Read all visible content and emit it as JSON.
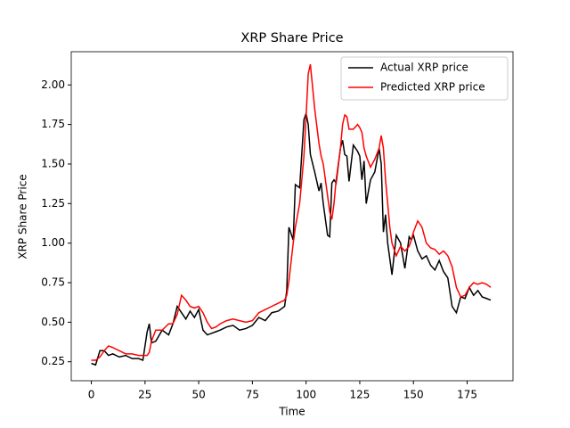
{
  "chart_data": {
    "type": "line",
    "title": "XRP Share Price",
    "x_label": "Time",
    "y_label": "XRP Share Price",
    "x": [
      0,
      2,
      4,
      6,
      8,
      10,
      13,
      16,
      19,
      22,
      24,
      26,
      27,
      28,
      30,
      33,
      36,
      38,
      40,
      42,
      44,
      46,
      48,
      50,
      52,
      54,
      56,
      58,
      60,
      63,
      66,
      69,
      72,
      75,
      78,
      81,
      84,
      87,
      90,
      91,
      92,
      94,
      95,
      97,
      99,
      100,
      101,
      102,
      104,
      106,
      107,
      108,
      110,
      111,
      112,
      113,
      114,
      116,
      117,
      118,
      119,
      120,
      122,
      124,
      125,
      126,
      127,
      128,
      130,
      132,
      134,
      135,
      136,
      137,
      138,
      139,
      140,
      142,
      144,
      146,
      148,
      149,
      150,
      152,
      154,
      156,
      158,
      160,
      162,
      164,
      166,
      168,
      170,
      172,
      174,
      176,
      178,
      180,
      182,
      184,
      186
    ],
    "series": [
      {
        "name": "Actual XRP price",
        "color": "#000000",
        "values": [
          0.24,
          0.23,
          0.32,
          0.32,
          0.29,
          0.3,
          0.28,
          0.29,
          0.27,
          0.27,
          0.26,
          0.44,
          0.49,
          0.37,
          0.38,
          0.45,
          0.42,
          0.49,
          0.6,
          0.56,
          0.52,
          0.57,
          0.53,
          0.58,
          0.45,
          0.42,
          0.43,
          0.44,
          0.45,
          0.47,
          0.48,
          0.45,
          0.46,
          0.48,
          0.53,
          0.51,
          0.56,
          0.57,
          0.6,
          0.7,
          1.1,
          1.02,
          1.37,
          1.35,
          1.78,
          1.82,
          1.75,
          1.56,
          1.45,
          1.33,
          1.38,
          1.25,
          1.05,
          1.04,
          1.38,
          1.4,
          1.38,
          1.6,
          1.65,
          1.56,
          1.55,
          1.39,
          1.62,
          1.58,
          1.55,
          1.4,
          1.52,
          1.25,
          1.4,
          1.45,
          1.6,
          1.5,
          1.07,
          1.18,
          1.0,
          0.9,
          0.8,
          1.05,
          1.0,
          0.84,
          1.04,
          1.02,
          1.05,
          0.95,
          0.9,
          0.92,
          0.86,
          0.83,
          0.89,
          0.82,
          0.78,
          0.6,
          0.56,
          0.66,
          0.65,
          0.72,
          0.67,
          0.7,
          0.66,
          0.65,
          0.64
        ]
      },
      {
        "name": "Predicted XRP price",
        "color": "#ff0000",
        "values": [
          0.26,
          0.26,
          0.28,
          0.32,
          0.35,
          0.34,
          0.32,
          0.3,
          0.3,
          0.29,
          0.29,
          0.29,
          0.31,
          0.38,
          0.45,
          0.45,
          0.49,
          0.49,
          0.55,
          0.67,
          0.64,
          0.6,
          0.59,
          0.6,
          0.56,
          0.5,
          0.46,
          0.47,
          0.49,
          0.51,
          0.52,
          0.51,
          0.5,
          0.51,
          0.56,
          0.58,
          0.6,
          0.62,
          0.64,
          0.67,
          0.76,
          1.0,
          1.1,
          1.25,
          1.55,
          1.8,
          2.07,
          2.13,
          1.85,
          1.63,
          1.55,
          1.5,
          1.3,
          1.2,
          1.15,
          1.25,
          1.4,
          1.6,
          1.75,
          1.81,
          1.8,
          1.72,
          1.72,
          1.75,
          1.73,
          1.7,
          1.6,
          1.55,
          1.48,
          1.53,
          1.6,
          1.68,
          1.6,
          1.4,
          1.25,
          1.1,
          1.0,
          0.92,
          0.98,
          0.95,
          0.98,
          1.02,
          1.07,
          1.14,
          1.1,
          1.0,
          0.97,
          0.96,
          0.93,
          0.95,
          0.92,
          0.85,
          0.72,
          0.66,
          0.67,
          0.72,
          0.75,
          0.74,
          0.75,
          0.74,
          0.72
        ]
      }
    ],
    "xlim": [
      -9.35,
      196.35
    ],
    "ylim": [
      0.13,
      2.21
    ],
    "xticks": [
      0,
      25,
      50,
      75,
      100,
      125,
      150,
      175
    ],
    "yticks": [
      0.25,
      {
        "value": 0.5,
        "label": "0.50"
      },
      0.75,
      {
        "value": 1,
        "label": "1.00"
      },
      1.25,
      {
        "value": 1.5,
        "label": "1.50"
      },
      1.75,
      {
        "value": 2,
        "label": "2.00"
      }
    ],
    "legend": "upper right",
    "grid": false
  }
}
